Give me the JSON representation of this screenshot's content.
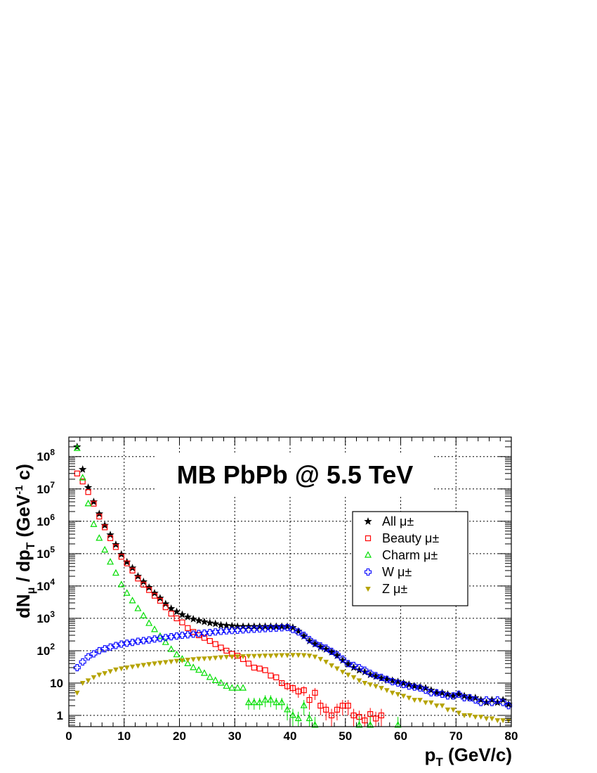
{
  "chart_data": {
    "type": "scatter",
    "title": "MB PbPb @ 5.5 TeV",
    "xlabel": "p_T (GeV/c)",
    "ylabel": "dN_μ / dp_T (GeV^-1 c)",
    "xlim": [
      0,
      80
    ],
    "ylim": [
      0.45,
      400000000
    ],
    "y_scale": "log",
    "grid": true,
    "legend_position": "right",
    "x_ticks": [
      0,
      10,
      20,
      30,
      40,
      50,
      60,
      70,
      80
    ],
    "y_ticks": [
      {
        "value": 1,
        "label": "1"
      },
      {
        "value": 10,
        "label": "10"
      },
      {
        "value": 100,
        "label": "10",
        "exp": "2"
      },
      {
        "value": 1000,
        "label": "10",
        "exp": "3"
      },
      {
        "value": 10000,
        "label": "10",
        "exp": "4"
      },
      {
        "value": 100000,
        "label": "10",
        "exp": "5"
      },
      {
        "value": 1000000,
        "label": "10",
        "exp": "6"
      },
      {
        "value": 10000000,
        "label": "10",
        "exp": "7"
      },
      {
        "value": 100000000,
        "label": "10",
        "exp": "8"
      }
    ],
    "series": [
      {
        "name": "All μ±",
        "marker": "star",
        "color": "#000000",
        "x": [
          1.5,
          2.5,
          3.5,
          4.5,
          5.5,
          6.5,
          7.5,
          8.5,
          9.5,
          10.5,
          11.5,
          12.5,
          13.5,
          14.5,
          15.5,
          16.5,
          17.5,
          18.5,
          19.5,
          20.5,
          21.5,
          22.5,
          23.5,
          24.5,
          25.5,
          26.5,
          27.5,
          28.5,
          29.5,
          30.5,
          31.5,
          32.5,
          33.5,
          34.5,
          35.5,
          36.5,
          37.5,
          38.5,
          39.5,
          40.5,
          41.5,
          42.5,
          43.5,
          44.5,
          45.5,
          46.5,
          47.5,
          48.5,
          49.5,
          50.5,
          51.5,
          52.5,
          53.5,
          54.5,
          55.5,
          56.5,
          57.5,
          58.5,
          59.5,
          60.5,
          61.5,
          62.5,
          63.5,
          64.5,
          65.5,
          66.5,
          67.5,
          68.5,
          69.5,
          70.5,
          71.5,
          72.5,
          73.5,
          74.5,
          75.5,
          76.5,
          77.5,
          78.5,
          79.5
        ],
        "y": [
          200000000,
          40000000,
          11000000,
          4000000,
          1700000,
          750000,
          380000,
          190000,
          95000,
          55000,
          36000,
          20000,
          13500,
          9000,
          6000,
          4200,
          2800,
          2000,
          1600,
          1300,
          1100,
          950,
          850,
          780,
          720,
          680,
          620,
          600,
          580,
          560,
          560,
          560,
          560,
          560,
          560,
          560,
          560,
          560,
          560,
          520,
          400,
          280,
          200,
          160,
          130,
          110,
          90,
          70,
          50,
          38,
          30,
          25,
          22,
          18,
          16,
          14,
          13,
          12,
          11,
          10,
          9,
          8,
          7.5,
          7,
          6,
          5,
          5,
          4.5,
          4,
          4.5,
          4,
          3.5,
          3.5,
          3,
          2.5,
          3,
          2.5,
          3,
          2.2
        ],
        "y_err": [
          0,
          0,
          0,
          0,
          0,
          0,
          0,
          0,
          0,
          0,
          0,
          0,
          0,
          0,
          0,
          0,
          0,
          0,
          0,
          0,
          0,
          0,
          0,
          0,
          0,
          0,
          0,
          0,
          0,
          0,
          0,
          0,
          0,
          0,
          0,
          0,
          0,
          0,
          0,
          0,
          0,
          0,
          0,
          0,
          0,
          0,
          0,
          0,
          0,
          0,
          0,
          0,
          0,
          0,
          0,
          0,
          0,
          0,
          0,
          0,
          0,
          0,
          0,
          0,
          0,
          0,
          0,
          0,
          0,
          0,
          0,
          0,
          0,
          0,
          0,
          0,
          0,
          0,
          0
        ]
      },
      {
        "name": "Beauty μ±",
        "marker": "open-square",
        "color": "#ff0000",
        "x": [
          1.5,
          2.5,
          3.5,
          4.5,
          5.5,
          6.5,
          7.5,
          8.5,
          9.5,
          10.5,
          11.5,
          12.5,
          13.5,
          14.5,
          15.5,
          16.5,
          17.5,
          18.5,
          19.5,
          20.5,
          21.5,
          22.5,
          23.5,
          24.5,
          25.5,
          26.5,
          27.5,
          28.5,
          29.5,
          30.5,
          31.5,
          32.5,
          33.5,
          34.5,
          35.5,
          36.5,
          37.5,
          38.5,
          39.5,
          40.5,
          41.5,
          42.5,
          43.5,
          44.5,
          45.5,
          46.5,
          47.5,
          48.5,
          49.5,
          50.5,
          51.5,
          52.5,
          53.5,
          54.5,
          55.5,
          56.5
        ],
        "y": [
          30000000,
          17000000,
          8000000,
          3500000,
          1400000,
          650000,
          300000,
          160000,
          80000,
          50000,
          30000,
          17000,
          11000,
          7500,
          5000,
          3500,
          2200,
          1400,
          1000,
          750,
          500,
          380,
          300,
          250,
          200,
          160,
          125,
          100,
          80,
          70,
          55,
          40,
          30,
          28,
          25,
          17,
          15,
          10,
          8,
          7,
          5.5,
          6,
          3,
          5,
          2,
          1.5,
          1,
          1.5,
          2,
          2,
          1,
          0.9,
          0.7,
          1.1,
          0.8,
          1
        ],
        "y_err": [
          0,
          0,
          0,
          0,
          0,
          0,
          0,
          0,
          0,
          0,
          0,
          0,
          0,
          0,
          0,
          0,
          0,
          0,
          0,
          0,
          0,
          0,
          0,
          0,
          0,
          0,
          0,
          0,
          0,
          0,
          0,
          0,
          0,
          0,
          0,
          0,
          0,
          2,
          2,
          2,
          2,
          2,
          1.5,
          2,
          1,
          0.8,
          0.6,
          0.8,
          1,
          1,
          0.6,
          0.5,
          0.4,
          0.6,
          0.5,
          0.6
        ]
      },
      {
        "name": "Charm μ±",
        "marker": "open-triangle",
        "color": "#00dd00",
        "x": [
          1.5,
          2.5,
          3.5,
          4.5,
          5.5,
          6.5,
          7.5,
          8.5,
          9.5,
          10.5,
          11.5,
          12.5,
          13.5,
          14.5,
          15.5,
          16.5,
          17.5,
          18.5,
          19.5,
          20.5,
          21.5,
          22.5,
          23.5,
          24.5,
          25.5,
          26.5,
          27.5,
          28.5,
          29.5,
          30.5,
          31.5,
          32.5,
          33.5,
          34.5,
          35.5,
          36.5,
          37.5,
          38.5,
          39.5,
          40.5,
          41.5,
          42.5,
          43.5,
          44.5,
          52.5,
          54.5,
          59.5
        ],
        "y": [
          180000000,
          22000000,
          3500000,
          800000,
          300000,
          130000,
          55000,
          25000,
          11000,
          6000,
          3500,
          2000,
          1200,
          700,
          450,
          280,
          180,
          110,
          75,
          55,
          40,
          30,
          25,
          20,
          15,
          12,
          10,
          8,
          7,
          7,
          7,
          2.5,
          2.5,
          2.5,
          3,
          3,
          2.5,
          2.5,
          1.5,
          1,
          0.8,
          2,
          0.8,
          0.5,
          0.5,
          0.5,
          0.5
        ],
        "y_err": [
          0,
          0,
          0,
          0,
          0,
          0,
          0,
          0,
          0,
          0,
          0,
          0,
          0,
          0,
          0,
          0,
          0,
          0,
          0,
          0,
          0,
          0,
          0,
          0,
          0,
          0,
          0,
          0,
          0,
          0,
          0,
          1,
          1,
          1,
          1.2,
          1.2,
          1,
          1,
          0.8,
          0.6,
          0.5,
          1,
          0.5,
          0.4,
          0.4,
          0.4,
          0.4
        ]
      },
      {
        "name": "W μ±",
        "marker": "open-cross",
        "color": "#0000ff",
        "x": [
          1.5,
          2.5,
          3.5,
          4.5,
          5.5,
          6.5,
          7.5,
          8.5,
          9.5,
          10.5,
          11.5,
          12.5,
          13.5,
          14.5,
          15.5,
          16.5,
          17.5,
          18.5,
          19.5,
          20.5,
          21.5,
          22.5,
          23.5,
          24.5,
          25.5,
          26.5,
          27.5,
          28.5,
          29.5,
          30.5,
          31.5,
          32.5,
          33.5,
          34.5,
          35.5,
          36.5,
          37.5,
          38.5,
          39.5,
          40.5,
          41.5,
          42.5,
          43.5,
          44.5,
          45.5,
          46.5,
          47.5,
          48.5,
          49.5,
          50.5,
          51.5,
          52.5,
          53.5,
          54.5,
          55.5,
          56.5,
          57.5,
          58.5,
          59.5,
          60.5,
          61.5,
          62.5,
          63.5,
          64.5,
          65.5,
          66.5,
          67.5,
          68.5,
          69.5,
          70.5,
          71.5,
          72.5,
          73.5,
          74.5,
          75.5,
          76.5,
          77.5,
          78.5,
          79.5
        ],
        "y": [
          30,
          45,
          65,
          80,
          100,
          115,
          130,
          145,
          160,
          170,
          180,
          195,
          205,
          215,
          230,
          240,
          255,
          270,
          285,
          300,
          310,
          325,
          340,
          350,
          365,
          380,
          395,
          410,
          420,
          430,
          440,
          450,
          460,
          470,
          480,
          490,
          500,
          510,
          520,
          450,
          380,
          300,
          220,
          170,
          140,
          120,
          95,
          75,
          55,
          40,
          35,
          30,
          25,
          20,
          17,
          15,
          13,
          11,
          10,
          9,
          8,
          7.5,
          7,
          6,
          5,
          5,
          4.5,
          4,
          4,
          4.5,
          3.5,
          3.5,
          3,
          2.5,
          3,
          2.5,
          3,
          2.5,
          2
        ],
        "y_err": [
          0,
          0,
          0,
          0,
          0,
          0,
          0,
          0,
          0,
          0,
          0,
          0,
          0,
          0,
          0,
          0,
          0,
          0,
          0,
          0,
          0,
          0,
          0,
          0,
          0,
          0,
          0,
          0,
          0,
          0,
          0,
          0,
          0,
          0,
          0,
          0,
          0,
          0,
          0,
          0,
          0,
          0,
          0,
          0,
          0,
          0,
          0,
          0,
          0,
          0,
          0,
          0,
          0,
          0,
          0,
          0,
          0,
          0,
          0,
          0,
          0,
          0,
          0,
          0,
          0,
          0,
          0,
          0,
          0,
          0,
          0,
          0,
          0,
          0,
          0,
          0,
          0,
          0,
          0
        ]
      },
      {
        "name": "Z μ±",
        "marker": "filled-down-triangle",
        "color": "#b5a300",
        "x": [
          1.5,
          2.5,
          3.5,
          4.5,
          5.5,
          6.5,
          7.5,
          8.5,
          9.5,
          10.5,
          11.5,
          12.5,
          13.5,
          14.5,
          15.5,
          16.5,
          17.5,
          18.5,
          19.5,
          20.5,
          21.5,
          22.5,
          23.5,
          24.5,
          25.5,
          26.5,
          27.5,
          28.5,
          29.5,
          30.5,
          31.5,
          32.5,
          33.5,
          34.5,
          35.5,
          36.5,
          37.5,
          38.5,
          39.5,
          40.5,
          41.5,
          42.5,
          43.5,
          44.5,
          45.5,
          46.5,
          47.5,
          48.5,
          49.5,
          50.5,
          51.5,
          52.5,
          53.5,
          54.5,
          55.5,
          56.5,
          57.5,
          58.5,
          59.5,
          60.5,
          61.5,
          62.5,
          63.5,
          64.5,
          65.5,
          66.5,
          67.5,
          68.5,
          69.5,
          70.5,
          71.5,
          72.5,
          73.5,
          74.5,
          75.5,
          76.5,
          77.5,
          78.5,
          79.5
        ],
        "y": [
          5,
          10,
          12,
          15,
          18,
          20,
          23,
          26,
          28,
          30,
          32,
          34,
          36,
          38,
          40,
          42,
          44,
          46,
          48,
          50,
          52,
          54,
          56,
          57,
          58,
          60,
          62,
          64,
          65,
          66,
          67,
          68,
          68,
          69,
          70,
          70,
          71,
          72,
          72,
          73,
          73,
          72,
          70,
          65,
          55,
          45,
          35,
          28,
          22,
          18,
          15,
          12,
          10,
          9,
          8,
          7,
          6,
          5,
          4.5,
          4,
          3.5,
          3,
          3,
          2.5,
          2.5,
          2,
          2,
          1.5,
          1.5,
          1.2,
          1,
          1,
          0.9,
          0.9,
          0.8,
          0.8,
          0.7,
          0.7,
          0.7
        ],
        "y_err": [
          0,
          0,
          0,
          0,
          0,
          0,
          0,
          0,
          0,
          0,
          0,
          0,
          0,
          0,
          0,
          0,
          0,
          0,
          0,
          0,
          0,
          0,
          0,
          0,
          0,
          0,
          0,
          0,
          0,
          0,
          0,
          0,
          0,
          0,
          0,
          0,
          0,
          0,
          0,
          0,
          0,
          0,
          0,
          0,
          0,
          0,
          0,
          0,
          0,
          0,
          0,
          0,
          0,
          0,
          0,
          0,
          0,
          0,
          0,
          0,
          0,
          0,
          0,
          0,
          0,
          0,
          0,
          0,
          0,
          0,
          0,
          0,
          0,
          0,
          0,
          0,
          0,
          0,
          0
        ]
      }
    ]
  }
}
